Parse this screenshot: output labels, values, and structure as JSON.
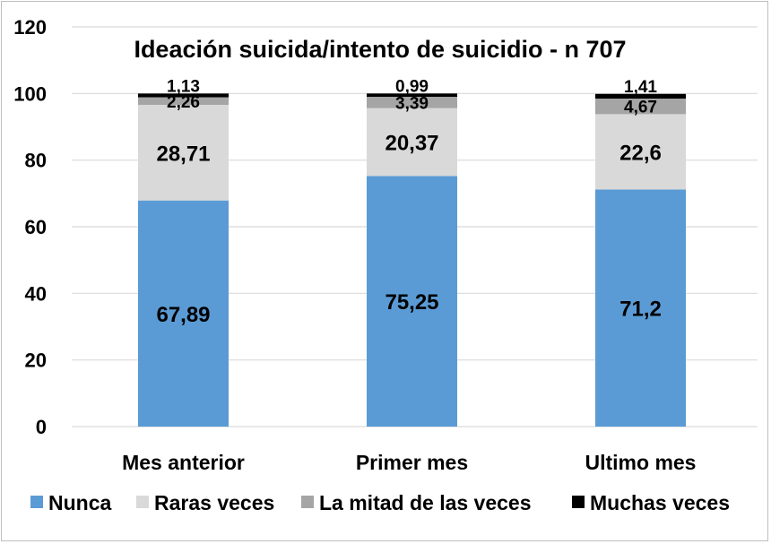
{
  "chart_data": {
    "type": "bar",
    "stacked": true,
    "title": "Ideación suicida/intento de suicidio - n 707",
    "categories": [
      "Mes anterior",
      "Primer mes",
      "Ultimo mes"
    ],
    "series": [
      {
        "name": "Nunca",
        "color": "#5b9bd5",
        "values": [
          67.89,
          75.25,
          71.2
        ],
        "labels": [
          "67,89",
          "75,25",
          "71,2"
        ]
      },
      {
        "name": "Raras veces",
        "color": "#d9d9d9",
        "values": [
          28.71,
          20.37,
          22.6
        ],
        "labels": [
          "28,71",
          "20,37",
          "22,6"
        ]
      },
      {
        "name": "La mitad de las veces",
        "color": "#a5a5a5",
        "values": [
          2.26,
          3.39,
          4.67
        ],
        "labels": [
          "2,26",
          "3,39",
          "4,67"
        ]
      },
      {
        "name": "Muchas veces",
        "color": "#000000",
        "values": [
          1.13,
          0.99,
          1.41
        ],
        "labels": [
          "1,13",
          "0,99",
          "1,41"
        ]
      }
    ],
    "ylim": [
      0,
      120
    ],
    "yticks": [
      "0",
      "20",
      "40",
      "60",
      "80",
      "100",
      "120"
    ],
    "xlabel": "",
    "ylabel": "",
    "grid": true,
    "legend_position": "bottom"
  }
}
